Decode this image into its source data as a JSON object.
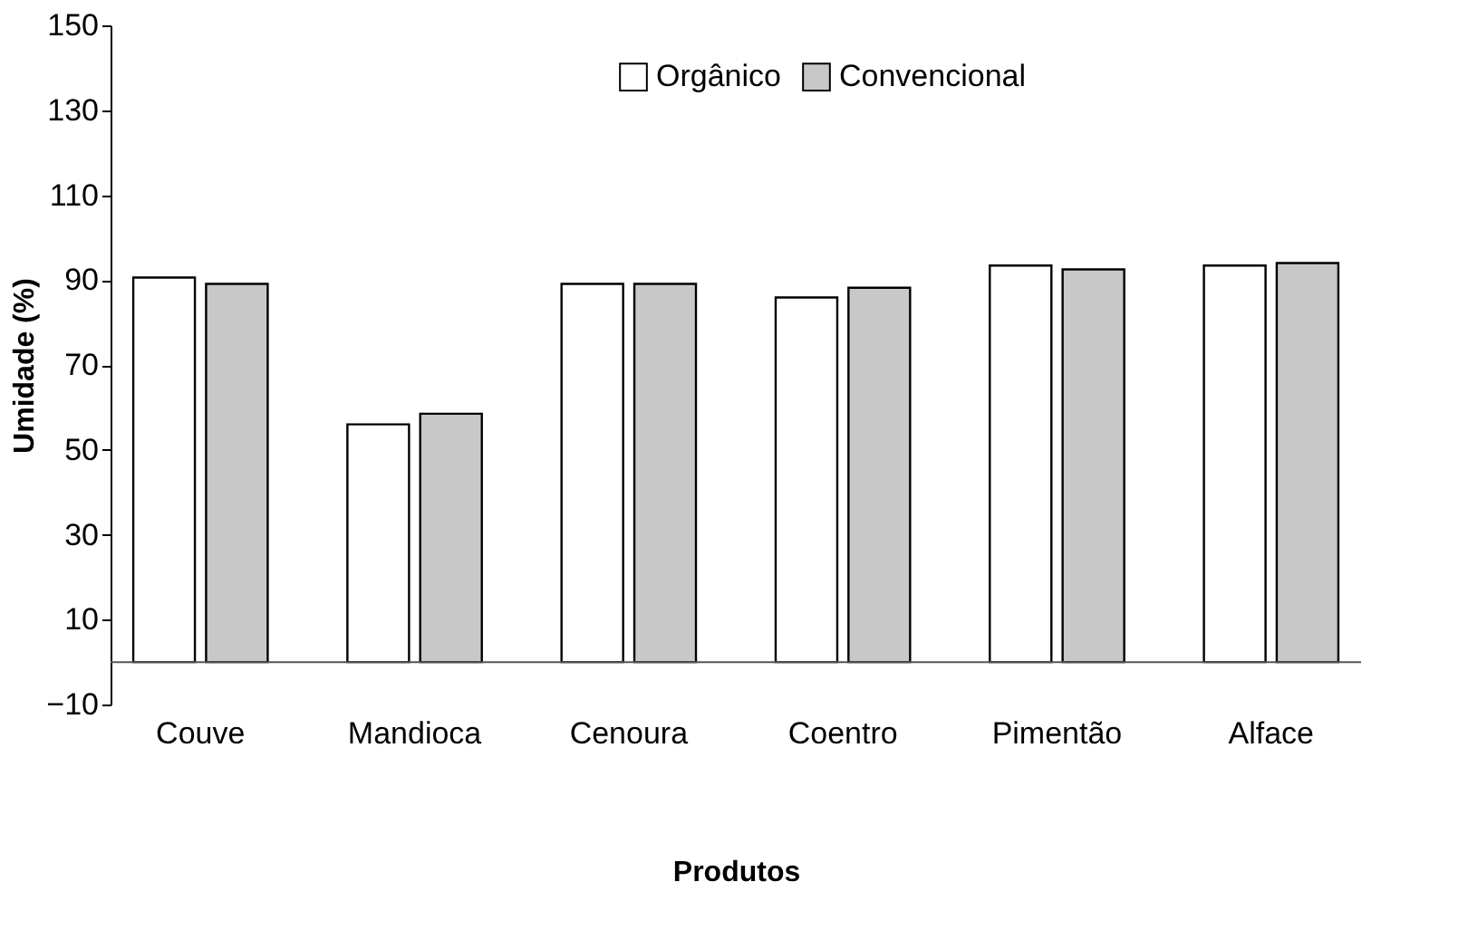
{
  "chart_data": {
    "type": "bar",
    "xlabel": "Produtos",
    "ylabel": "Umidade (%)",
    "categories": [
      "Couve",
      "Mandioca",
      "Cenoura",
      "Coentro",
      "Pimentão",
      "Alface"
    ],
    "series": [
      {
        "name": "Orgânico",
        "color": "#ffffff",
        "values": [
          90.6,
          56,
          89.1,
          85.9,
          93.4,
          93.4
        ]
      },
      {
        "name": "Convencional",
        "color": "#c8c8c8",
        "values": [
          89.1,
          58.5,
          89.1,
          88.2,
          92.5,
          94
        ]
      }
    ],
    "ylim": [
      -10,
      150
    ],
    "yticks": [
      -10,
      10,
      30,
      50,
      70,
      90,
      110,
      130,
      150
    ],
    "grid": false,
    "legend": "top"
  }
}
